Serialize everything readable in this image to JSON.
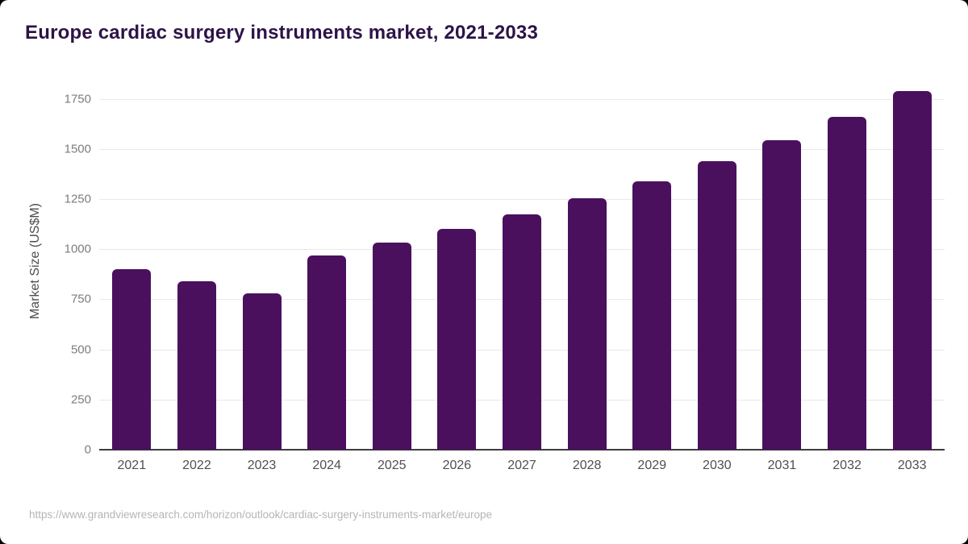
{
  "page": {
    "source_url": "https://www.grandviewresearch.com/horizon/outlook/cardiac-surgery-instruments-market/europe"
  },
  "chart_data": {
    "type": "bar",
    "title": "Europe cardiac surgery instruments market, 2021-2033",
    "categories": [
      "2021",
      "2022",
      "2023",
      "2024",
      "2025",
      "2026",
      "2027",
      "2028",
      "2029",
      "2030",
      "2031",
      "2032",
      "2033"
    ],
    "values": [
      900,
      840,
      780,
      970,
      1035,
      1100,
      1175,
      1255,
      1340,
      1440,
      1545,
      1660,
      1790
    ],
    "xlabel": "",
    "ylabel": "Market Size (US$M)",
    "ylim": [
      0,
      1880
    ],
    "yticks": [
      0,
      250,
      500,
      750,
      1000,
      1250,
      1500,
      1750
    ],
    "grid": true,
    "legend": "none",
    "bar_color": "#4a105e",
    "title_color": "#2d1347",
    "axis_line_color": "#3c3c3c",
    "gridline_color": "#e9e9e9"
  }
}
